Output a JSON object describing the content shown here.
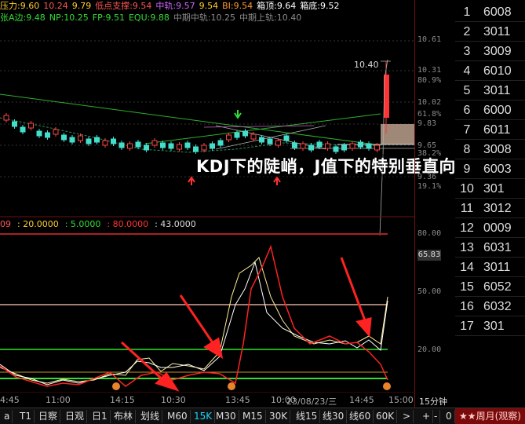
{
  "main_header": {
    "line1": [
      {
        "label": "压力:",
        "value": "9.60",
        "color": "#ffcc33"
      },
      {
        "label": "",
        "value": "10.24",
        "color": "#ff5555"
      },
      {
        "label": "",
        "value": "9.79",
        "color": "#ffcc33"
      },
      {
        "label": "低点支撑:",
        "value": "9.54",
        "color": "#ff5555"
      },
      {
        "label": "中轨:",
        "value": "9.57",
        "color": "#cc66ff"
      },
      {
        "label": "",
        "value": "9.54",
        "color": "#ffcc33"
      },
      {
        "label": "BI:",
        "value": "9.54",
        "color": "#ff9933"
      },
      {
        "label": "箱顶:",
        "value": "9.64",
        "color": "#ffffff"
      },
      {
        "label": "箱底:",
        "value": "9.52",
        "color": "#ffffff"
      }
    ],
    "line2": [
      {
        "label": "张A边:",
        "value": "9.48",
        "color": "#33dd33"
      },
      {
        "label": "NP:",
        "value": "10.25",
        "color": "#33dd33"
      },
      {
        "label": "FP:",
        "value": "9.51",
        "color": "#33dd33"
      },
      {
        "label": "EQU:",
        "value": "9.88",
        "color": "#33dd33"
      },
      {
        "label": "中期中轨:",
        "value": "10.25",
        "color": "#8a8a8a"
      },
      {
        "label": "中期上轨:",
        "value": "10.40",
        "color": "#8a8a8a"
      }
    ]
  },
  "main_scale": [
    "10.61",
    "10.31",
    "80.9%",
    "10.02",
    "61.8%",
    "9.83",
    "9.65",
    "38.2%",
    "9.36",
    "19.1%"
  ],
  "peak_label": "10.40",
  "overlay_text": "KDJ下的陡峭，J值下的特别垂直向下",
  "indicator_header": {
    "items": [
      {
        "value": "09",
        "color": "#ff5555"
      },
      {
        "value": ": 20.0000",
        "color": "#ffcc33"
      },
      {
        "value": ": 5.0000",
        "color": "#33dd33"
      },
      {
        "value": ": 80.0000",
        "color": "#ff3333"
      },
      {
        "value": ": 43.0000",
        "color": "#dddddd"
      }
    ]
  },
  "indicator_scale": [
    "80.00",
    "65.83",
    "50.00",
    "20.00"
  ],
  "times": [
    "4:45",
    "11:00",
    "14:15",
    "10:30",
    "13:45",
    "10:00",
    "23/08/23/三",
    "14:45",
    "15:00"
  ],
  "right_scale_bottom": "15分钟",
  "codes": [
    {
      "n": "1",
      "c": "6008"
    },
    {
      "n": "2",
      "c": "3011"
    },
    {
      "n": "3",
      "c": "3009"
    },
    {
      "n": "4",
      "c": "6010"
    },
    {
      "n": "5",
      "c": "3011"
    },
    {
      "n": "6",
      "c": "6000"
    },
    {
      "n": "7",
      "c": "6011"
    },
    {
      "n": "8",
      "c": "3008"
    },
    {
      "n": "9",
      "c": "6003"
    },
    {
      "n": "10",
      "c": "301"
    },
    {
      "n": "11",
      "c": "3012"
    },
    {
      "n": "12",
      "c": "0009"
    },
    {
      "n": "13",
      "c": "6031"
    },
    {
      "n": "14",
      "c": "3011"
    },
    {
      "n": "15",
      "c": "6052"
    },
    {
      "n": "16",
      "c": "6032"
    },
    {
      "n": "17",
      "c": "301"
    }
  ],
  "period_tabs": [
    "a",
    "T1",
    "日察",
    "日观",
    "日1",
    "布林",
    "划线",
    "M60",
    "15K",
    "M30",
    "M15",
    "30K",
    "线15",
    "线30",
    "线60",
    "60K",
    ">"
  ],
  "active_tab": "15K",
  "bottom_right": [
    "+",
    "-",
    "0"
  ],
  "badge": "★★周月(观察)"
}
